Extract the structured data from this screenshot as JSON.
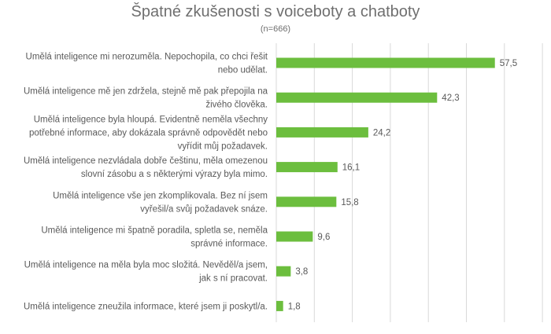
{
  "chart_data": {
    "type": "bar",
    "orientation": "horizontal",
    "title": "Špatné zkušenosti s voiceboty a chatboty",
    "subtitle": "(n=666)",
    "categories": [
      [
        "Umělá inteligence mi nerozuměla. Nepochopila, co chci řešit",
        "nebo udělat."
      ],
      [
        "Umělá inteligence mě jen zdržela, stejně mě pak přepojila na",
        "živého člověka."
      ],
      [
        "Umělá inteligence byla hloupá. Evidentně neměla všechny",
        "potřebné informace, aby dokázala správně odpovědět nebo",
        "vyřídit můj požadavek."
      ],
      [
        "Umělá inteligence nezvládala dobře češtinu, měla omezenou",
        "slovní zásobu a s některými výrazy byla mimo."
      ],
      [
        "Umělá inteligence vše jen zkomplikovala. Bez ní jsem",
        "vyřešil/a svůj požadavek snáze."
      ],
      [
        "Umělá inteligence mi špatně poradila, spletla se, neměla",
        "správné informace."
      ],
      [
        "Umělá inteligence na měla byla moc složitá. Nevěděl/a jsem,",
        "jak s ní pracovat."
      ],
      [
        "Umělá inteligence zneužila informace, které jsem ji poskytl/a."
      ]
    ],
    "values": [
      57.5,
      42.3,
      24.2,
      16.1,
      15.8,
      9.6,
      3.8,
      1.8
    ],
    "value_labels": [
      "57,5",
      "42,3",
      "24,2",
      "16,1",
      "15,8",
      "9,6",
      "3,8",
      "1,8"
    ],
    "xlim": [
      0,
      70
    ],
    "grid": true,
    "legend": "none",
    "colors": {
      "bar": "#6cbe3e",
      "grid": "#d9d9d9",
      "text": "#595959",
      "title": "#6f6f6f"
    }
  }
}
